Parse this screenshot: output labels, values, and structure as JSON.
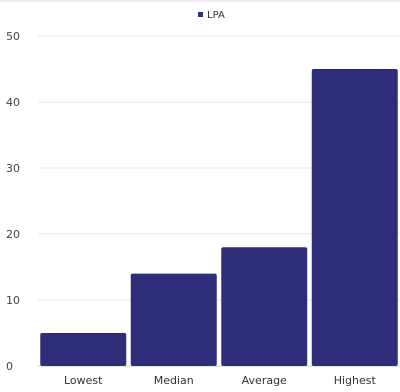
{
  "chart_data": {
    "type": "bar",
    "categories": [
      "Lowest",
      "Median",
      "Average",
      "Highest"
    ],
    "series": [
      {
        "name": "LPA",
        "values": [
          5,
          14,
          18,
          45
        ]
      }
    ],
    "ylim": [
      0,
      50
    ],
    "yticks": [
      0,
      10,
      20,
      30,
      40,
      50
    ],
    "grid": true,
    "legend": "top-center",
    "colors": {
      "bar": "#2e2d7a",
      "grid": "#e6e6e6",
      "axis": "#cccccc"
    }
  }
}
